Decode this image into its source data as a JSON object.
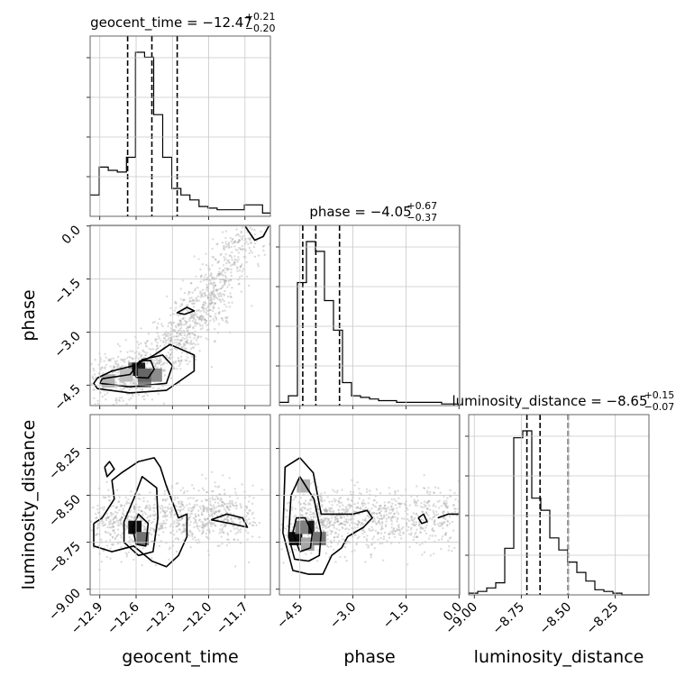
{
  "chart_data": {
    "type": "corner",
    "grid": true,
    "parameters": [
      {
        "name": "geocent_time",
        "label": "geocent_time",
        "range": [
          -12.98,
          -11.49
        ],
        "ticks": [
          "−12.9",
          "−12.6",
          "−12.3",
          "−12.0",
          "−11.7"
        ],
        "tick_values": [
          -12.9,
          -12.6,
          -12.3,
          -12.0,
          -11.7
        ]
      },
      {
        "name": "phase",
        "label": "phase",
        "range": [
          -5.08,
          0.02
        ],
        "ticks": [
          "−4.5",
          "−3.0",
          "−1.5",
          "0.0"
        ],
        "tick_values": [
          -4.5,
          -3.0,
          -1.5,
          0.0
        ]
      },
      {
        "name": "luminosity_distance",
        "label": "luminosity_distance",
        "range": [
          -9.03,
          -8.07
        ],
        "ticks": [
          "−9.00",
          "−8.75",
          "−8.50",
          "−8.25"
        ],
        "tick_values": [
          -9.0,
          -8.75,
          -8.5,
          -8.25
        ]
      }
    ],
    "titles": [
      {
        "param": "geocent_time",
        "name": "geocent_time = −12.47",
        "plus": "+0.21",
        "minus": "−0.20",
        "quantiles": [
          -12.67,
          -12.47,
          -12.26
        ]
      },
      {
        "param": "phase",
        "name": "phase = −4.05",
        "plus": "+0.67",
        "minus": "−0.37",
        "quantiles": [
          -4.42,
          -4.05,
          -3.38
        ]
      },
      {
        "param": "luminosity_distance",
        "name": "luminosity_distance = −8.65",
        "plus": "+0.15",
        "minus": "−0.07",
        "quantiles": [
          -8.72,
          -8.65,
          -8.5
        ]
      }
    ],
    "histograms": [
      {
        "param": "geocent_time",
        "edges_start": -12.98,
        "bin_width": 0.075,
        "counts": [
          0.13,
          0.3,
          0.28,
          0.27,
          0.36,
          1.0,
          0.97,
          0.62,
          0.36,
          0.17,
          0.13,
          0.1,
          0.06,
          0.05,
          0.04,
          0.04,
          0.04,
          0.07,
          0.07,
          0.02
        ]
      },
      {
        "param": "phase",
        "edges_start": -5.08,
        "bin_width": 0.255,
        "counts": [
          0.02,
          0.06,
          0.75,
          1.0,
          0.94,
          0.64,
          0.46,
          0.14,
          0.06,
          0.05,
          0.04,
          0.03,
          0.03,
          0.02,
          0.02,
          0.02,
          0.02,
          0.02,
          0.01,
          0.01
        ]
      },
      {
        "param": "luminosity_distance",
        "edges_start": -9.03,
        "bin_width": 0.048,
        "counts": [
          0.01,
          0.02,
          0.04,
          0.07,
          0.27,
          0.91,
          0.95,
          0.56,
          0.49,
          0.33,
          0.26,
          0.19,
          0.13,
          0.08,
          0.03,
          0.02,
          0.01,
          0.0,
          0.0,
          0.0
        ]
      }
    ],
    "densities": [
      {
        "x": "geocent_time",
        "y": "phase",
        "cells": [
          [
            -12.83,
            -4.38,
            0.3
          ],
          [
            -12.53,
            -4.38,
            0.5
          ],
          [
            -12.61,
            -4.05,
            0.5
          ],
          [
            -12.58,
            -4.05,
            0.9
          ],
          [
            -12.44,
            -4.22,
            0.45
          ],
          [
            -12.53,
            -4.22,
            0.6
          ],
          [
            -12.68,
            -4.22,
            0.25
          ]
        ],
        "contours": [
          [
            [
              -12.92,
              -4.3
            ],
            [
              -12.8,
              -4.1
            ],
            [
              -12.62,
              -3.95
            ],
            [
              -12.45,
              -3.65
            ],
            [
              -12.32,
              -3.35
            ],
            [
              -12.12,
              -3.65
            ],
            [
              -12.12,
              -4.1
            ],
            [
              -12.35,
              -4.65
            ],
            [
              -12.65,
              -4.72
            ],
            [
              -12.92,
              -4.6
            ],
            [
              -12.95,
              -4.45
            ],
            [
              -12.92,
              -4.3
            ]
          ],
          [
            [
              -12.88,
              -4.32
            ],
            [
              -12.65,
              -4.2
            ],
            [
              -12.55,
              -3.78
            ],
            [
              -12.38,
              -3.65
            ],
            [
              -12.3,
              -3.95
            ],
            [
              -12.35,
              -4.45
            ],
            [
              -12.65,
              -4.55
            ],
            [
              -12.9,
              -4.45
            ],
            [
              -12.88,
              -4.32
            ]
          ],
          [
            [
              -12.63,
              -4.05
            ],
            [
              -12.57,
              -3.82
            ],
            [
              -12.48,
              -3.8
            ],
            [
              -12.45,
              -4.05
            ],
            [
              -12.5,
              -4.3
            ],
            [
              -12.6,
              -4.28
            ],
            [
              -12.63,
              -4.05
            ]
          ],
          [
            [
              -12.2,
              -2.5
            ],
            [
              -12.12,
              -2.4
            ],
            [
              -12.18,
              -2.3
            ],
            [
              -12.26,
              -2.45
            ],
            [
              -12.2,
              -2.5
            ]
          ],
          [
            [
              -11.7,
              0.0
            ],
            [
              -11.62,
              -0.4
            ],
            [
              -11.55,
              -0.3
            ],
            [
              -11.5,
              0.02
            ]
          ]
        ],
        "scatter": {
          "n": 1200,
          "spine": [
            [
              -12.9,
              -4.4
            ],
            [
              -12.5,
              -4.0
            ],
            [
              -12.2,
              -3.0
            ],
            [
              -11.95,
              -1.8
            ],
            [
              -11.65,
              -0.1
            ]
          ]
        }
      },
      {
        "x": "geocent_time",
        "y": "luminosity_distance",
        "cells": [
          [
            -12.61,
            -8.67,
            0.95
          ],
          [
            -12.55,
            -8.73,
            0.55
          ]
        ],
        "contours": [
          [
            [
              -12.95,
              -8.65
            ],
            [
              -12.88,
              -8.62
            ],
            [
              -12.78,
              -8.52
            ],
            [
              -12.8,
              -8.42
            ],
            [
              -12.72,
              -8.38
            ],
            [
              -12.58,
              -8.32
            ],
            [
              -12.45,
              -8.3
            ],
            [
              -12.4,
              -8.35
            ],
            [
              -12.35,
              -8.45
            ],
            [
              -12.25,
              -8.62
            ],
            [
              -12.18,
              -8.6
            ],
            [
              -12.18,
              -8.72
            ],
            [
              -12.25,
              -8.82
            ],
            [
              -12.35,
              -8.88
            ],
            [
              -12.47,
              -8.85
            ],
            [
              -12.62,
              -8.77
            ],
            [
              -12.8,
              -8.8
            ],
            [
              -12.95,
              -8.77
            ],
            [
              -12.95,
              -8.65
            ]
          ],
          [
            [
              -12.7,
              -8.64
            ],
            [
              -12.62,
              -8.52
            ],
            [
              -12.55,
              -8.4
            ],
            [
              -12.43,
              -8.46
            ],
            [
              -12.42,
              -8.62
            ],
            [
              -12.46,
              -8.8
            ],
            [
              -12.58,
              -8.82
            ],
            [
              -12.7,
              -8.75
            ],
            [
              -12.7,
              -8.64
            ]
          ],
          [
            [
              -12.63,
              -8.67
            ],
            [
              -12.58,
              -8.6
            ],
            [
              -12.5,
              -8.65
            ],
            [
              -12.52,
              -8.77
            ],
            [
              -12.6,
              -8.76
            ],
            [
              -12.63,
              -8.67
            ]
          ],
          [
            [
              -12.86,
              -8.35
            ],
            [
              -12.82,
              -8.32
            ],
            [
              -12.78,
              -8.36
            ],
            [
              -12.84,
              -8.4
            ],
            [
              -12.86,
              -8.35
            ]
          ],
          [
            [
              -11.98,
              -8.63
            ],
            [
              -11.85,
              -8.6
            ],
            [
              -11.72,
              -8.62
            ],
            [
              -11.68,
              -8.67
            ],
            [
              -11.82,
              -8.65
            ],
            [
              -11.98,
              -8.63
            ]
          ]
        ],
        "scatter": {
          "n": 900,
          "spine": [
            [
              -12.9,
              -8.65
            ],
            [
              -12.55,
              -8.65
            ],
            [
              -12.1,
              -8.6
            ],
            [
              -11.7,
              -8.62
            ]
          ]
        }
      },
      {
        "x": "phase",
        "y": "luminosity_distance",
        "cells": [
          [
            -4.62,
            -8.73,
            0.95
          ],
          [
            -4.28,
            -8.67,
            0.9
          ],
          [
            -4.45,
            -8.67,
            0.5
          ],
          [
            -4.28,
            -8.76,
            0.35
          ],
          [
            -3.95,
            -8.73,
            0.55
          ],
          [
            -4.4,
            -8.45,
            0.3
          ]
        ],
        "contours": [
          [
            [
              -4.98,
              -8.7
            ],
            [
              -4.92,
              -8.35
            ],
            [
              -4.5,
              -8.3
            ],
            [
              -4.12,
              -8.38
            ],
            [
              -3.9,
              -8.6
            ],
            [
              -3.5,
              -8.6
            ],
            [
              -3.0,
              -8.6
            ],
            [
              -2.6,
              -8.58
            ],
            [
              -2.45,
              -8.62
            ],
            [
              -2.7,
              -8.67
            ],
            [
              -3.15,
              -8.72
            ],
            [
              -3.32,
              -8.78
            ],
            [
              -3.6,
              -8.82
            ],
            [
              -3.85,
              -8.92
            ],
            [
              -4.25,
              -8.92
            ],
            [
              -4.7,
              -8.9
            ],
            [
              -4.98,
              -8.7
            ]
          ],
          [
            [
              -4.82,
              -8.72
            ],
            [
              -4.75,
              -8.5
            ],
            [
              -4.5,
              -8.4
            ],
            [
              -4.1,
              -8.52
            ],
            [
              -3.9,
              -8.7
            ],
            [
              -3.95,
              -8.82
            ],
            [
              -4.25,
              -8.85
            ],
            [
              -4.65,
              -8.84
            ],
            [
              -4.82,
              -8.72
            ]
          ],
          [
            [
              -4.7,
              -8.7
            ],
            [
              -4.6,
              -8.62
            ],
            [
              -4.35,
              -8.62
            ],
            [
              -4.15,
              -8.7
            ],
            [
              -4.2,
              -8.78
            ],
            [
              -4.5,
              -8.8
            ],
            [
              -4.7,
              -8.7
            ]
          ],
          [
            [
              -1.15,
              -8.62
            ],
            [
              -1.0,
              -8.6
            ],
            [
              -0.9,
              -8.64
            ],
            [
              -1.05,
              -8.65
            ],
            [
              -1.15,
              -8.62
            ]
          ],
          [
            [
              -0.6,
              -8.62
            ],
            [
              -0.3,
              -8.6
            ],
            [
              0.0,
              -8.6
            ]
          ]
        ],
        "scatter": {
          "n": 1000,
          "spine": [
            [
              -4.6,
              -8.65
            ],
            [
              -3.5,
              -8.63
            ],
            [
              -2.0,
              -8.62
            ],
            [
              0.0,
              -8.62
            ]
          ]
        }
      }
    ]
  }
}
